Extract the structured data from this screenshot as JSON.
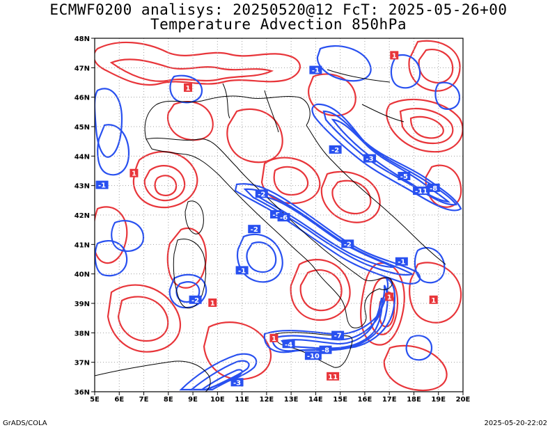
{
  "title": {
    "line1": "ECMWF0200 analisys: 20250520@12 FcT: 2025-05-26+00",
    "line2": "Temperature Advection 850hPa"
  },
  "map": {
    "lon_range": [
      5,
      20
    ],
    "lat_range": [
      36,
      48
    ],
    "x_ticks": [
      "5E",
      "6E",
      "7E",
      "8E",
      "9E",
      "10E",
      "11E",
      "12E",
      "13E",
      "14E",
      "15E",
      "16E",
      "17E",
      "18E",
      "19E",
      "20E"
    ],
    "y_ticks": [
      "36N",
      "37N",
      "38N",
      "39N",
      "40N",
      "41N",
      "42N",
      "43N",
      "44N",
      "45N",
      "46N",
      "47N",
      "48N"
    ],
    "colors": {
      "positive": "#e8353a",
      "negative": "#2850f0",
      "coast": "#000000",
      "grid": "#a0a0a0"
    },
    "contour_labels": [
      {
        "text": "-1",
        "lon": 14.0,
        "lat": 46.9,
        "sign": "neg"
      },
      {
        "text": "-2",
        "lon": 14.8,
        "lat": 44.2,
        "sign": "neg"
      },
      {
        "text": "-3",
        "lon": 16.2,
        "lat": 43.9,
        "sign": "neg"
      },
      {
        "text": "-5",
        "lon": 17.6,
        "lat": 43.3,
        "sign": "neg"
      },
      {
        "text": "-11",
        "lon": 18.3,
        "lat": 42.8,
        "sign": "neg"
      },
      {
        "text": "-8",
        "lon": 18.8,
        "lat": 42.9,
        "sign": "neg"
      },
      {
        "text": "-2",
        "lon": 11.8,
        "lat": 42.7,
        "sign": "neg"
      },
      {
        "text": "-5",
        "lon": 12.4,
        "lat": 42.0,
        "sign": "neg"
      },
      {
        "text": "-6",
        "lon": 12.7,
        "lat": 41.9,
        "sign": "neg"
      },
      {
        "text": "-2",
        "lon": 11.5,
        "lat": 41.5,
        "sign": "neg"
      },
      {
        "text": "-1",
        "lon": 11.0,
        "lat": 40.1,
        "sign": "neg"
      },
      {
        "text": "-2",
        "lon": 9.1,
        "lat": 39.1,
        "sign": "neg"
      },
      {
        "text": "-4",
        "lon": 12.9,
        "lat": 37.6,
        "sign": "neg"
      },
      {
        "text": "-10",
        "lon": 13.9,
        "lat": 37.2,
        "sign": "neg"
      },
      {
        "text": "-8",
        "lon": 14.4,
        "lat": 37.4,
        "sign": "neg"
      },
      {
        "text": "-7",
        "lon": 14.9,
        "lat": 37.9,
        "sign": "neg"
      },
      {
        "text": "-3",
        "lon": 10.8,
        "lat": 36.3,
        "sign": "neg"
      },
      {
        "text": "-1",
        "lon": 5.3,
        "lat": 43.0,
        "sign": "neg"
      },
      {
        "text": "1",
        "lon": 6.6,
        "lat": 43.4,
        "sign": "pos"
      },
      {
        "text": "1",
        "lon": 8.8,
        "lat": 46.3,
        "sign": "pos"
      },
      {
        "text": "1",
        "lon": 17.2,
        "lat": 47.4,
        "sign": "pos"
      },
      {
        "text": "1",
        "lon": 9.8,
        "lat": 39.0,
        "sign": "pos"
      },
      {
        "text": "1",
        "lon": 12.3,
        "lat": 37.8,
        "sign": "pos"
      },
      {
        "text": "11",
        "lon": 14.7,
        "lat": 36.5,
        "sign": "pos"
      },
      {
        "text": "1",
        "lon": 17.0,
        "lat": 39.2,
        "sign": "pos"
      },
      {
        "text": "1",
        "lon": 18.8,
        "lat": 39.1,
        "sign": "pos"
      },
      {
        "text": "-1",
        "lon": 17.5,
        "lat": 40.4,
        "sign": "neg"
      },
      {
        "text": "-2",
        "lon": 15.3,
        "lat": 41.0,
        "sign": "neg"
      }
    ]
  },
  "footer": {
    "left": "GrADS/COLA",
    "right": "2025-05-20-22:02"
  }
}
